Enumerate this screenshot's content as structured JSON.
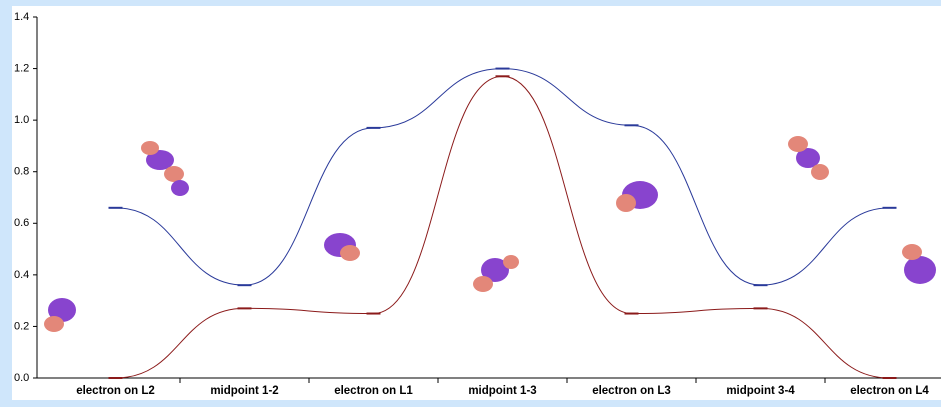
{
  "chart_data": {
    "type": "line",
    "categories": [
      "electron on L2",
      "midpoint 1-2",
      "electron on L1",
      "midpoint 1-3",
      "electron on L3",
      "midpoint 3-4",
      "electron on L4"
    ],
    "series": [
      {
        "color": "#2a3a9a",
        "values": [
          0.66,
          0.36,
          0.97,
          1.2,
          0.98,
          0.36,
          0.66
        ]
      },
      {
        "color": "#8b1a1a",
        "values": [
          0.0,
          0.27,
          0.25,
          1.17,
          0.25,
          0.27,
          0.0
        ]
      }
    ],
    "ylim": [
      0,
      1.4
    ],
    "yticks": [
      {
        "value": 0,
        "label": "0.0"
      },
      0.2,
      0.4,
      0.6,
      0.8,
      {
        "value": 1,
        "label": "1.0"
      },
      1.2,
      1.4
    ]
  }
}
